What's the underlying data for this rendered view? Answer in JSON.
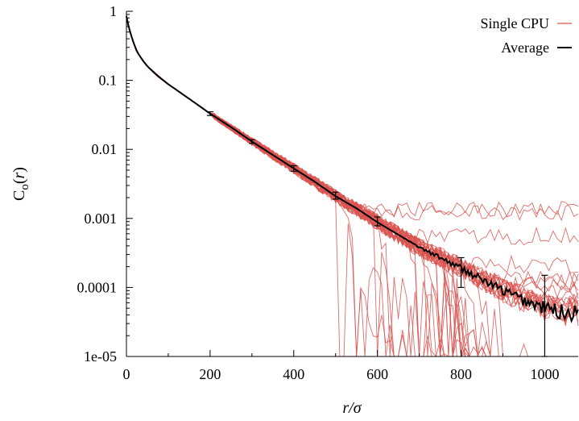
{
  "chart_data": {
    "type": "line",
    "title": "",
    "xlabel": "r/σ",
    "ylabel": "C_o(r)",
    "xlim": [
      0,
      1080
    ],
    "ylim": [
      1e-05,
      1
    ],
    "y_scale": "log",
    "grid": false,
    "legend_position": "top-right",
    "x_ticks": [
      0,
      200,
      400,
      600,
      800,
      1000
    ],
    "x_tick_labels": [
      "0",
      "200",
      "400",
      "600",
      "800",
      "1000"
    ],
    "y_ticks": [
      1,
      0.1,
      0.01,
      0.001,
      0.0001,
      1e-05
    ],
    "y_tick_labels": [
      "1",
      "0.1",
      "0.01",
      "0.001",
      "0.0001",
      "1e-05"
    ],
    "series": [
      {
        "name": "Single CPU",
        "color": "#d9534f",
        "line_count": 40,
        "shared_x": [
          0,
          10,
          25,
          50,
          100,
          150,
          200,
          300,
          400,
          500,
          600,
          700,
          800,
          900,
          1000,
          1080
        ],
        "shared_y": [
          0.85,
          0.48,
          0.26,
          0.16,
          0.088,
          0.054,
          0.033,
          0.013,
          0.0053,
          0.0021,
          0.00088,
          0.00038,
          0.00019,
          9e-05,
          5e-05,
          4.2e-05
        ],
        "plateau_range": [
          1e-05,
          0.0022
        ],
        "drop_x_range": [
          490,
          900
        ]
      },
      {
        "name": "Average",
        "color": "#000000",
        "x": [
          0,
          5,
          10,
          15,
          25,
          40,
          50,
          75,
          100,
          150,
          200,
          250,
          300,
          350,
          400,
          450,
          500,
          550,
          600,
          650,
          700,
          750,
          800,
          850,
          900,
          950,
          1000,
          1050,
          1080
        ],
        "y": [
          0.85,
          0.6,
          0.48,
          0.38,
          0.26,
          0.19,
          0.16,
          0.115,
          0.088,
          0.054,
          0.033,
          0.021,
          0.013,
          0.0083,
          0.0053,
          0.0034,
          0.0021,
          0.0014,
          0.00088,
          0.00058,
          0.00038,
          0.00027,
          0.00019,
          0.00013,
          9e-05,
          6.5e-05,
          5e-05,
          4.3e-05,
          4.2e-05
        ]
      }
    ],
    "error_bars": [
      {
        "x": 200,
        "y": 0.033,
        "low": 0.031,
        "high": 0.035
      },
      {
        "x": 300,
        "y": 0.013,
        "low": 0.0122,
        "high": 0.0138
      },
      {
        "x": 400,
        "y": 0.0053,
        "low": 0.0048,
        "high": 0.0058
      },
      {
        "x": 500,
        "y": 0.0021,
        "low": 0.0019,
        "high": 0.0024
      },
      {
        "x": 600,
        "y": 0.00088,
        "low": 0.00078,
        "high": 0.00105
      },
      {
        "x": 800,
        "y": 0.00019,
        "low": 0.0001,
        "high": 0.00027
      },
      {
        "x": 1000,
        "y": 5e-05,
        "low": 1e-05,
        "high": 0.00015
      }
    ]
  }
}
